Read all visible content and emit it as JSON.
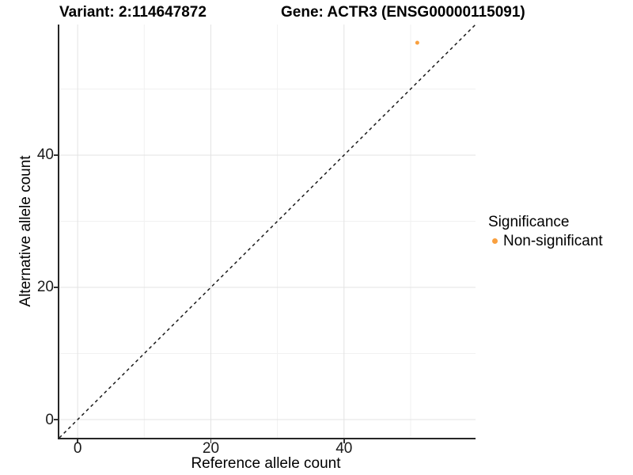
{
  "header": {
    "variant_title": "Variant: 2:114647872",
    "gene_title": "Gene: ACTR3 (ENSG00000115091)"
  },
  "axes": {
    "x": {
      "label": "Reference allele count"
    },
    "y": {
      "label": "Alternative allele count"
    }
  },
  "legend": {
    "title": "Significance",
    "items": [
      {
        "label": "Non-significant",
        "color": "#F9A03F",
        "marker": "circle"
      }
    ]
  },
  "chart_data": {
    "type": "scatter",
    "title_left": "Variant: 2:114647872",
    "title_right": "Gene: ACTR3 (ENSG00000115091)",
    "xlabel": "Reference allele count",
    "ylabel": "Alternative allele count",
    "x_range": [
      -2.75,
      59.75
    ],
    "y_range": [
      -2.75,
      59.75
    ],
    "x_ticks": [
      0,
      20,
      40
    ],
    "y_ticks": [
      0,
      20,
      40
    ],
    "x_minor_gridlines": [
      10,
      30,
      50
    ],
    "y_minor_gridlines": [
      10,
      30,
      50
    ],
    "grid": true,
    "legend_position": "right",
    "series": [
      {
        "name": "Non-significant",
        "color": "#F9A03F",
        "points": [
          {
            "x": 51,
            "y": 57
          }
        ]
      }
    ],
    "reference_line": {
      "type": "identity",
      "style": "dashed",
      "color": "#1a1a1a"
    },
    "colors": {
      "grid_major": "#E3E3E3",
      "grid_minor": "#F1F1F1",
      "axis_line": "#262626",
      "tick": "#333333"
    }
  }
}
